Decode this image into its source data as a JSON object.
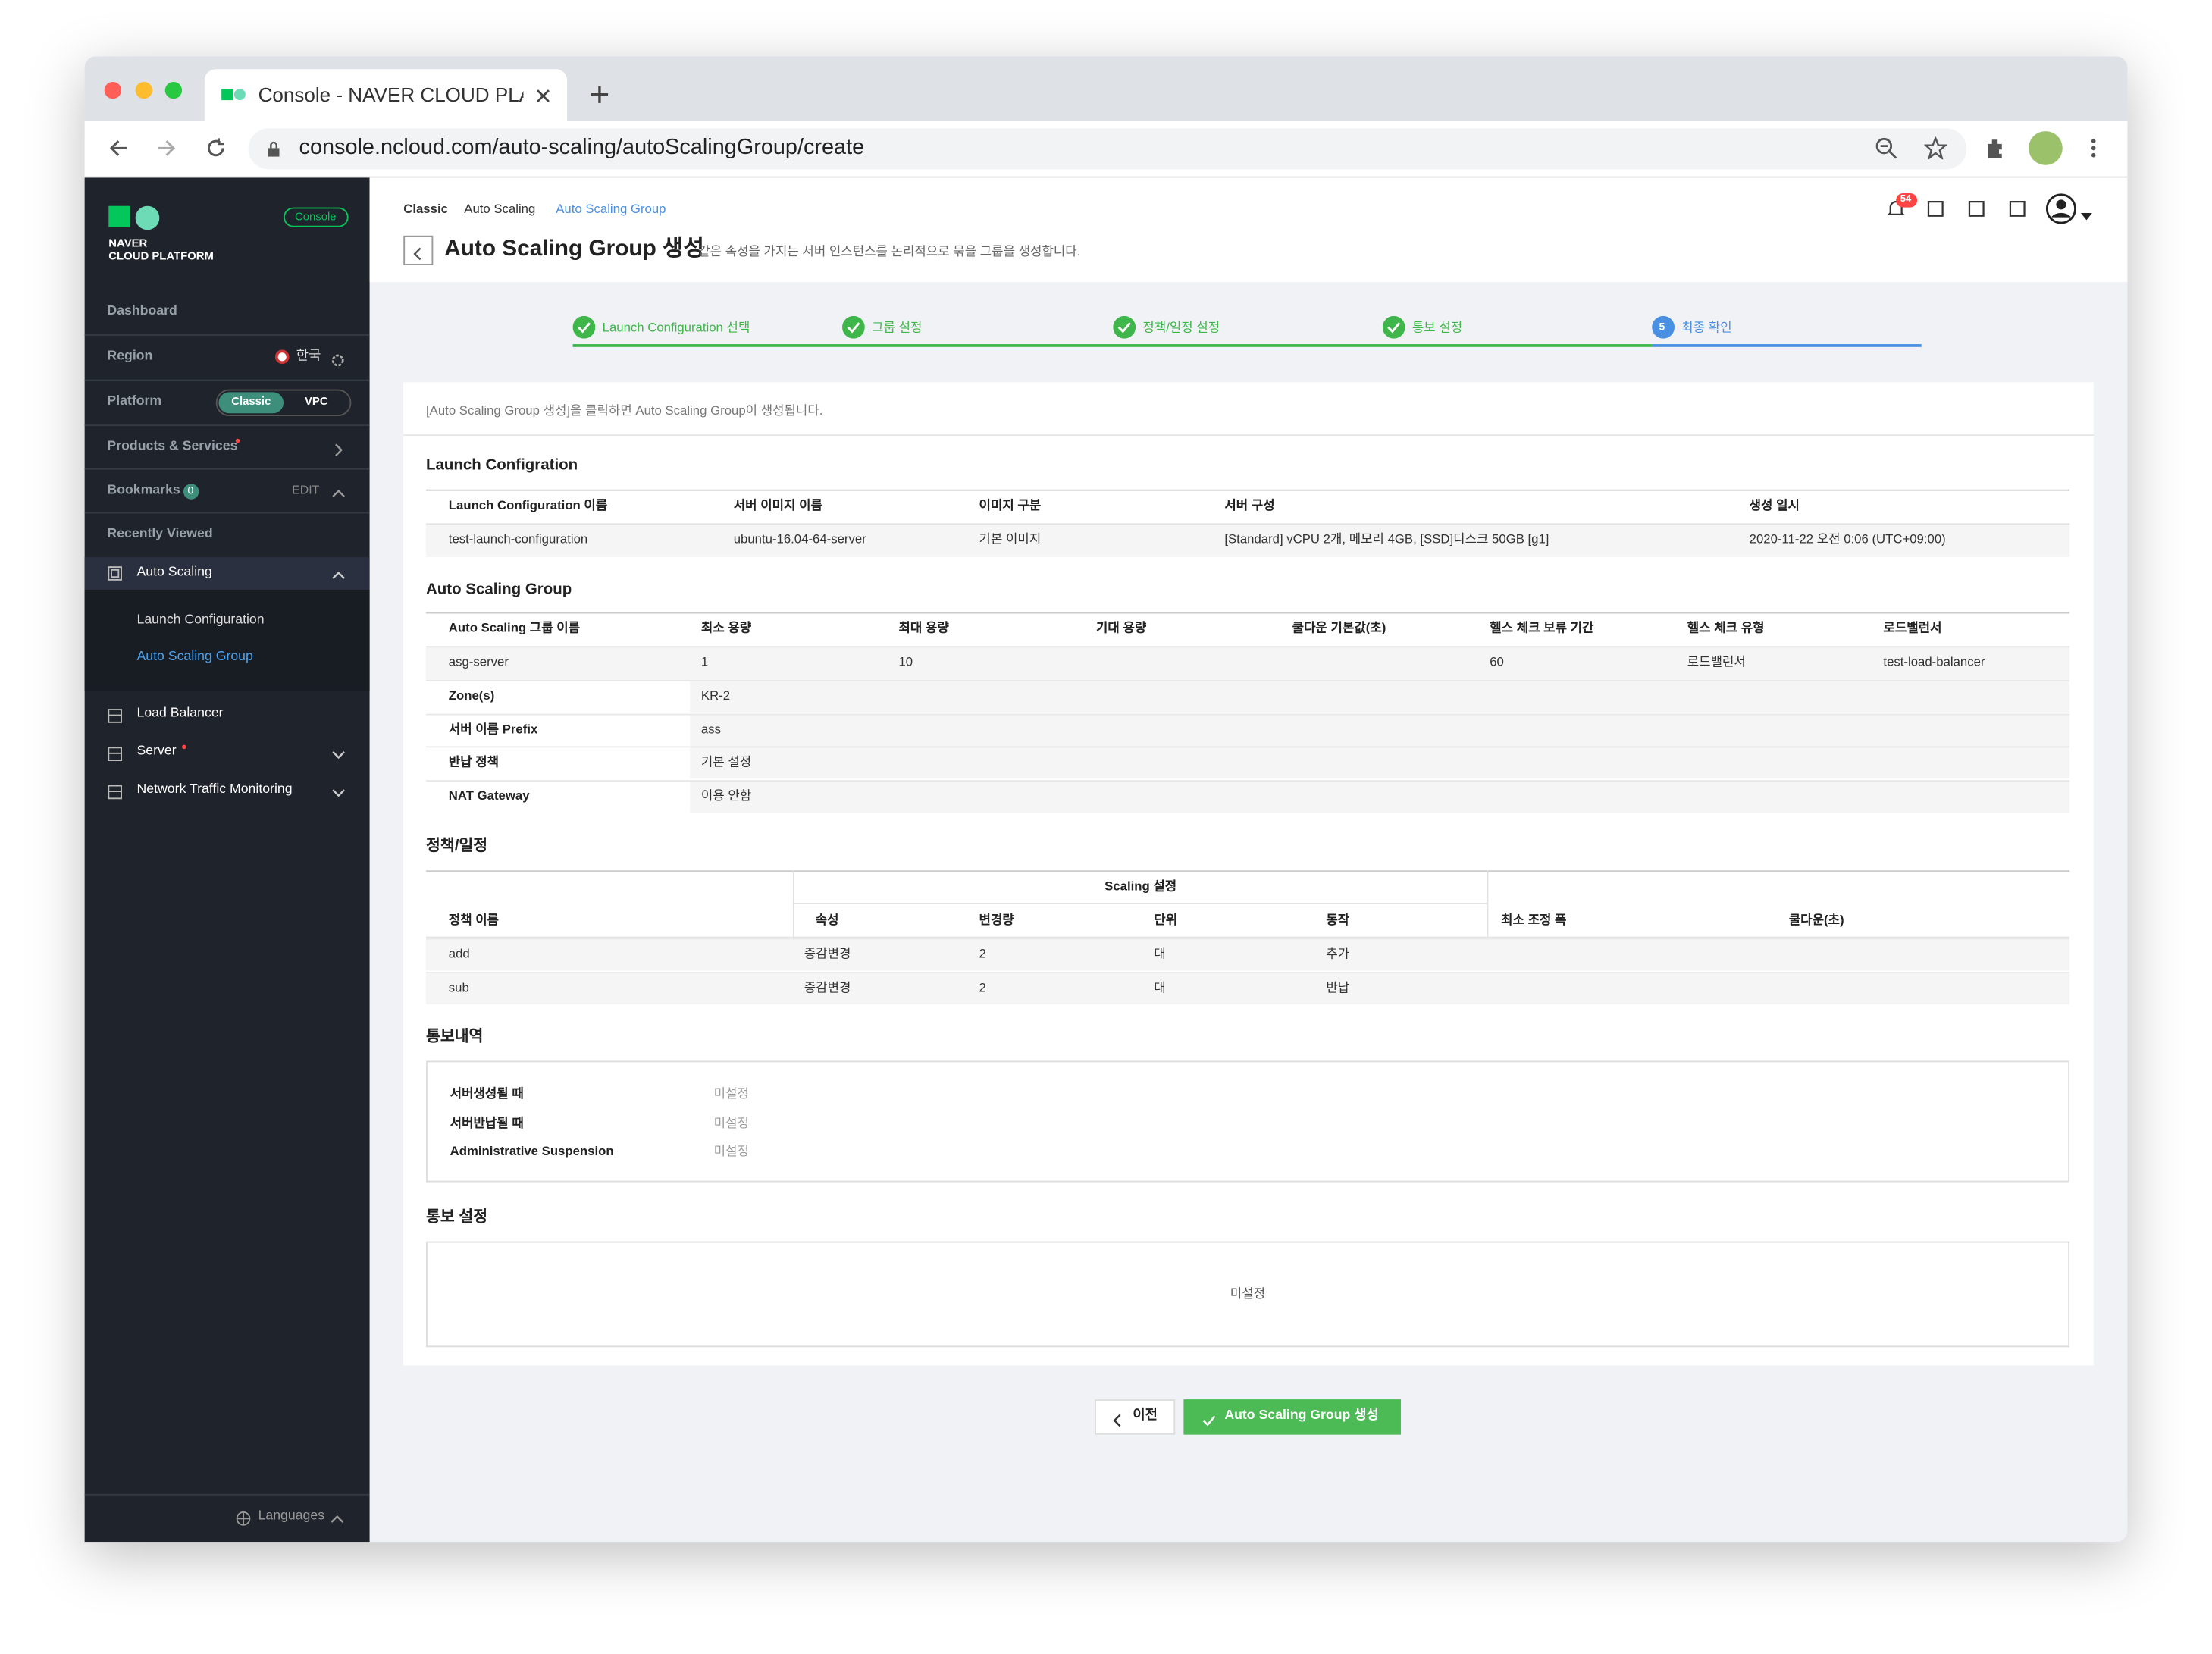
{
  "browser": {
    "tab_title": "Console - NAVER CLOUD PLAT",
    "url": "console.ncloud.com/auto-scaling/autoScalingGroup/create"
  },
  "sidebar": {
    "logo": [
      "NAVER",
      "CLOUD PLATFORM"
    ],
    "console_badge": "Console",
    "dashboard": "Dashboard",
    "region": "Region",
    "region_value": "한국",
    "platform": "Platform",
    "platform_options": [
      "Classic",
      "VPC"
    ],
    "products": "Products & Services",
    "bookmarks": "Bookmarks",
    "bookmarks_count": 0,
    "edit": "EDIT",
    "recently_viewed": "Recently Viewed",
    "menu": [
      {
        "label": "Auto Scaling",
        "children": [
          "Launch Configuration",
          "Auto Scaling Group"
        ]
      },
      {
        "label": "Load Balancer"
      },
      {
        "label": "Server"
      },
      {
        "label": "Network Traffic Monitoring"
      }
    ],
    "languages": "Languages"
  },
  "header": {
    "breadcrumb": [
      "Classic",
      "Auto Scaling",
      "Auto Scaling Group"
    ],
    "title": "Auto Scaling Group 생성",
    "description": "같은 속성을 가지는 서버 인스턴스를 논리적으로 묶을 그룹을 생성합니다.",
    "notifications": 54
  },
  "steps": {
    "labels": [
      "Launch Configuration 선택",
      "그룹 설정",
      "정책/일정 설정",
      "통보 설정",
      "최종 확인"
    ],
    "current": 5
  },
  "notice": "[Auto Scaling Group 생성]을 클릭하면 Auto Scaling Group이 생성됩니다.",
  "launch_configuration": {
    "title": "Launch Configration",
    "headers": [
      "Launch Configuration 이름",
      "서버 이미지 이름",
      "이미지 구분",
      "서버 구성",
      "생성 일시"
    ],
    "row": [
      "test-launch-configuration",
      "ubuntu-16.04-64-server",
      "기본 이미지",
      "[Standard] vCPU 2개, 메모리 4GB, [SSD]디스크 50GB [g1]",
      "2020-11-22 오전 0:06 (UTC+09:00)"
    ]
  },
  "auto_scaling_group": {
    "title": "Auto Scaling Group",
    "headers": [
      "Auto Scaling 그룹 이름",
      "최소 용량",
      "최대 용량",
      "기대 용량",
      "쿨다운 기본값(초)",
      "헬스 체크 보류 기간",
      "헬스 체크 유형",
      "로드밸런서"
    ],
    "row": [
      "asg-server",
      1,
      10,
      null,
      null,
      60,
      "로드밸런서",
      "test-load-balancer"
    ],
    "details": [
      [
        "Zone(s)",
        "KR-2"
      ],
      [
        "서버 이름 Prefix",
        "ass"
      ],
      [
        "반납 정책",
        "기본 설정"
      ],
      [
        "NAT Gateway",
        "이용 안함"
      ]
    ]
  },
  "policy": {
    "title": "정책/일정",
    "group_header": "Scaling 설정",
    "headers": [
      "정책 이름",
      "속성",
      "변경량",
      "단위",
      "동작",
      "최소 조정 폭",
      "쿨다운(초)"
    ],
    "rows": [
      [
        "add",
        "증감변경",
        2,
        "대",
        "추가",
        null,
        null
      ],
      [
        "sub",
        "증감변경",
        2,
        "대",
        "반납",
        null,
        null
      ]
    ]
  },
  "notification_history": {
    "title": "통보내역",
    "rows": [
      [
        "서버생성될 때",
        "미설정"
      ],
      [
        "서버반납될 때",
        "미설정"
      ],
      [
        "Administrative Suspension",
        "미설정"
      ]
    ]
  },
  "notification_settings": {
    "title": "통보 설정",
    "value": "미설정"
  },
  "buttons": {
    "prev": "이전",
    "create": "Auto Scaling Group 생성"
  }
}
